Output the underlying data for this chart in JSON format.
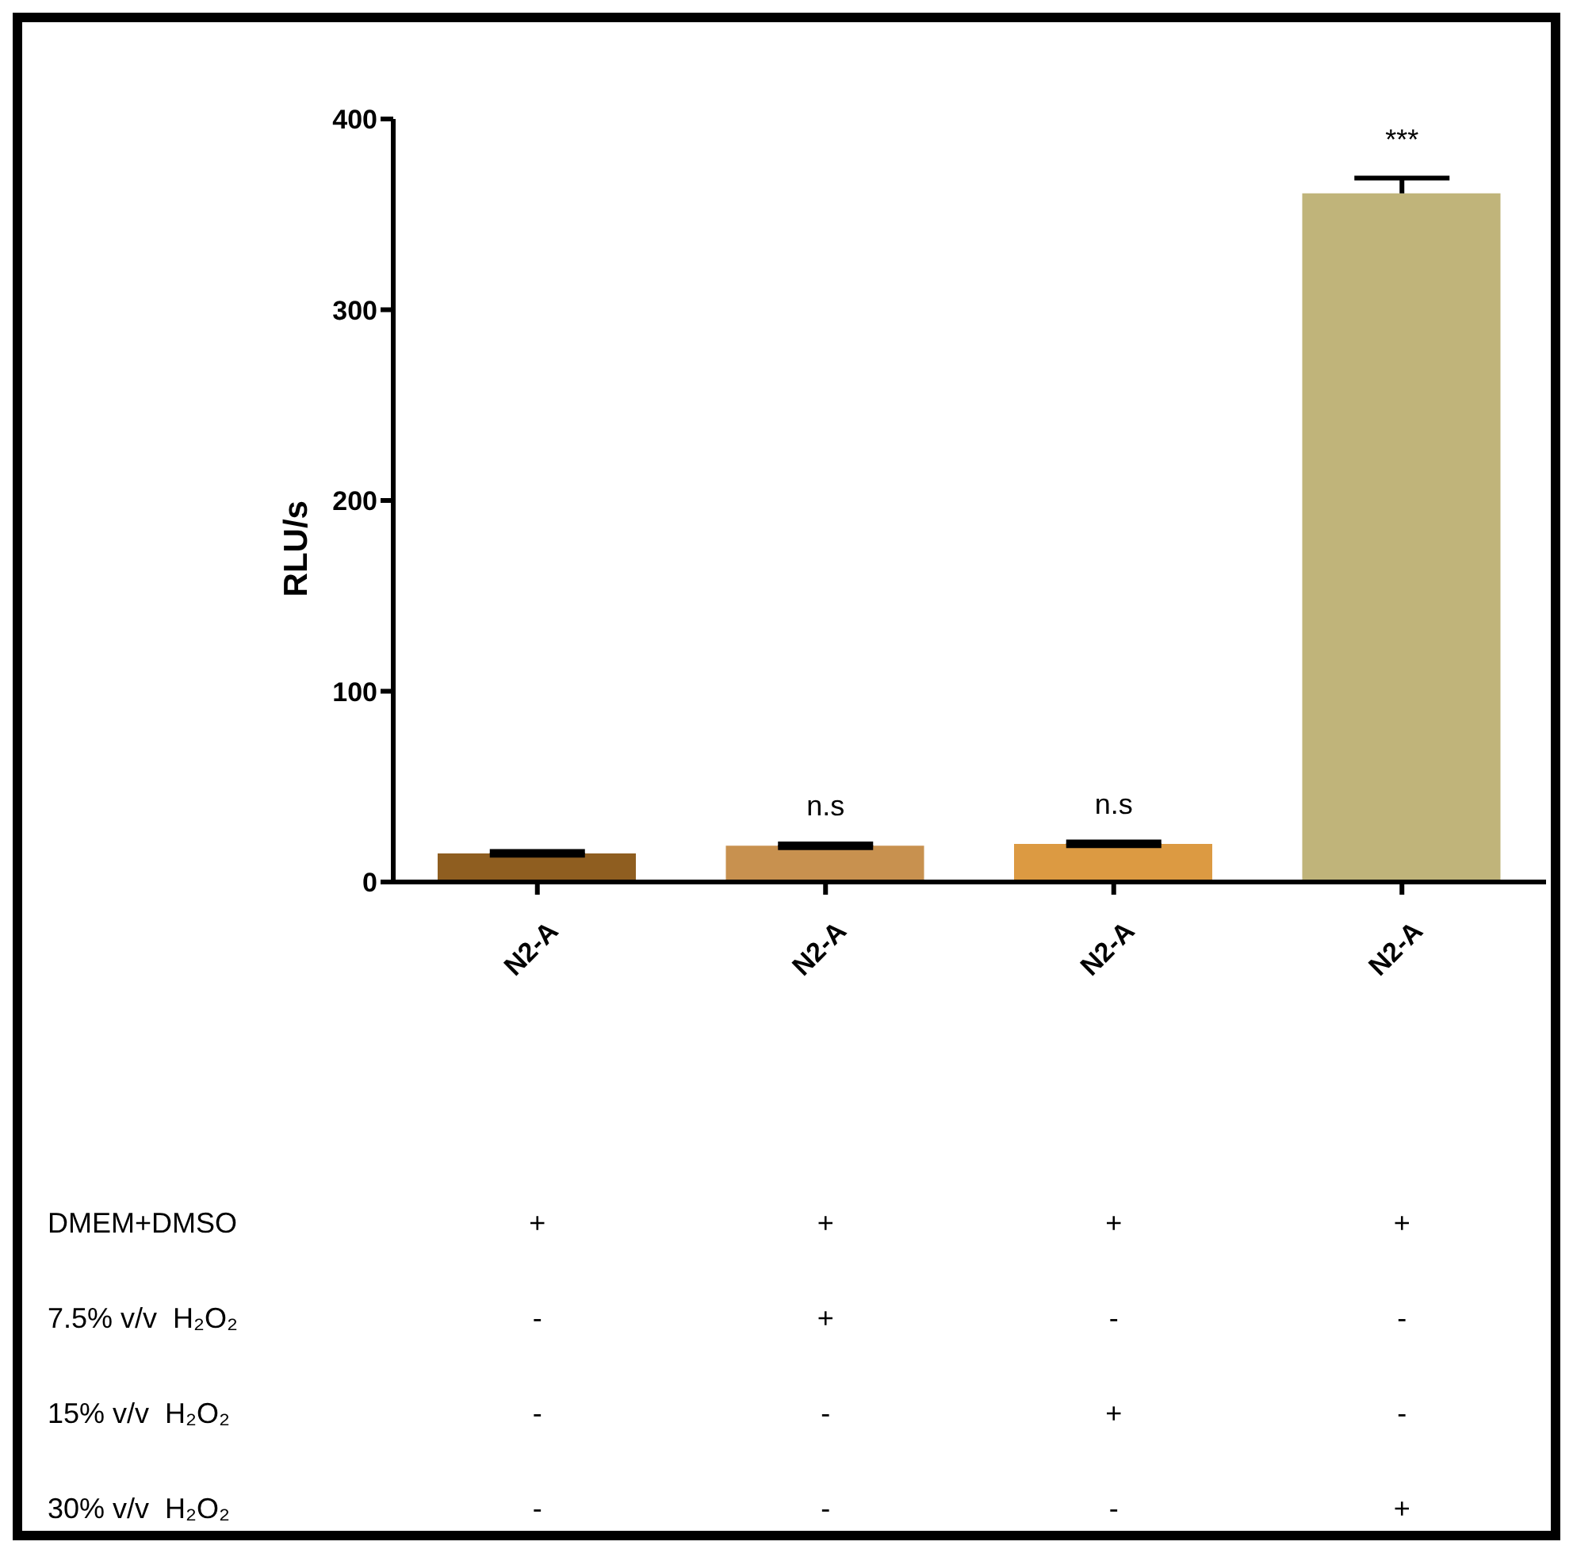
{
  "chart_data": {
    "type": "bar",
    "ylabel": "RLU/s",
    "categories": [
      "N2-A",
      "N2-A",
      "N2-A",
      "N2-A"
    ],
    "values": [
      15,
      19,
      20,
      361
    ],
    "errors": [
      1,
      1,
      1,
      [
        361,
        369
      ]
    ],
    "colors": [
      "#8f5e20",
      "#c8914f",
      "#dc9a42",
      "#c0b47a"
    ],
    "ylim": [
      0,
      400
    ],
    "yticks": [
      0,
      100,
      200,
      300,
      400
    ],
    "grid": false,
    "annotations": [
      "n.s",
      "n.s",
      "***",
      "DMEM+DMSO",
      "+",
      "+",
      "+",
      "+",
      "7.5% v/v  H₂O₂",
      "-",
      "+",
      "-",
      "-",
      "15% v/v  H₂O₂",
      "-",
      "-",
      "+",
      "-",
      "30% v/v  H₂O₂",
      "-",
      "-",
      "-",
      "+"
    ]
  }
}
